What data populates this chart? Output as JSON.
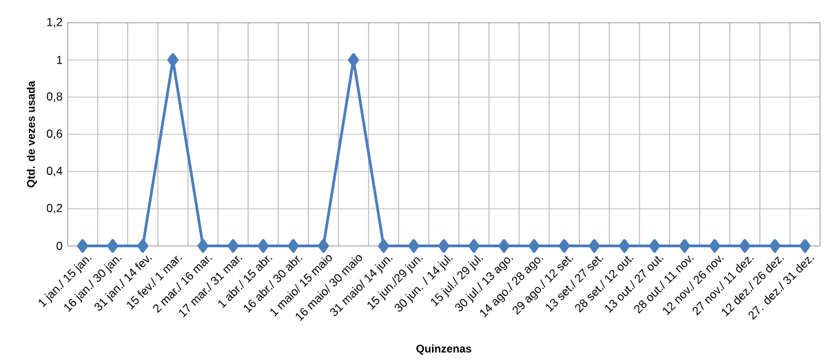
{
  "chart_data": {
    "type": "line",
    "xlabel": "Quinzenas",
    "ylabel": "Qtd. de vezes usada",
    "categories": [
      "1 jan./ 15 jan.",
      "16 jan./ 30 jan.",
      "31 jan./ 14 fev.",
      "15 fev./ 1 mar.",
      "2 mar./ 16 mar.",
      "17 mar./ 31 mar.",
      "1 abr./ 15 abr.",
      "16 abr./ 30 abr.",
      "1 maio/ 15 maio",
      "16 maio/ 30 maio",
      "31 maio/ 14 jun.",
      "15 jun./29 jun.",
      "30 jun. / 14 jul.",
      "15 jul./ 29 jul.",
      "30 jul./ 13 ago.",
      "14 ago./ 28 ago.",
      "29 ago./ 12 set.",
      "13 set./ 27 set.",
      "28 set./ 12 out.",
      "13 out./ 27 out.",
      "28 out./ 11 nov.",
      "12 nov./ 26 nov.",
      "27 nov./ 11 dez.",
      "12 dez./ 26 dez.",
      "27. dez./ 31 dez."
    ],
    "series": [
      {
        "color": "#4a7ebb",
        "values": [
          0,
          0,
          0,
          1,
          0,
          0,
          0,
          0,
          0,
          1,
          0,
          0,
          0,
          0,
          0,
          0,
          0,
          0,
          0,
          0,
          0,
          0,
          0,
          0,
          0
        ]
      }
    ],
    "ylim": [
      0,
      1.2
    ],
    "yticks": [
      {
        "value": 0,
        "label": "0"
      },
      {
        "value": 0.2,
        "label": "0,2"
      },
      {
        "value": 0.4,
        "label": "0,4"
      },
      {
        "value": 0.6,
        "label": "0,6"
      },
      {
        "value": 0.8,
        "label": "0,8"
      },
      {
        "value": 1,
        "label": "1"
      },
      {
        "value": 1.2,
        "label": "1,2"
      }
    ],
    "grid": true,
    "marker": "diamond",
    "line_style": "solid"
  }
}
